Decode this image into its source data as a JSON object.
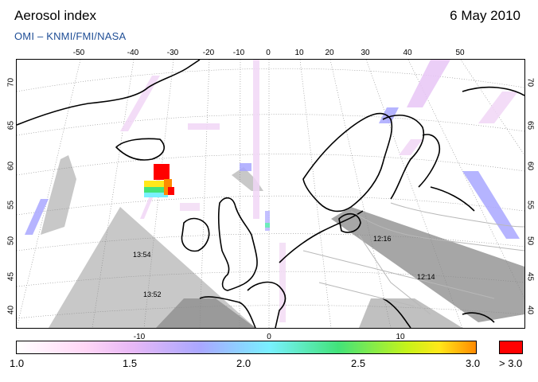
{
  "header": {
    "title": "Aerosol index",
    "date": "6 May 2010",
    "credit": "OMI  –  KNMI/FMI/NASA"
  },
  "map": {
    "lon_top_labels": [
      "-50",
      "-40",
      "-30",
      "-20",
      "-10",
      "0",
      "10",
      "20",
      "30",
      "40",
      "50"
    ],
    "lon_bottom_labels": [
      "-10",
      "0",
      "10"
    ],
    "lat_left_labels": [
      "70",
      "65",
      "60",
      "55",
      "50",
      "45",
      "40"
    ],
    "lat_right_labels": [
      "70",
      "65",
      "60",
      "55",
      "50",
      "45",
      "40"
    ],
    "orbit_time_labels": [
      "13:54",
      "13:52",
      "12:16",
      "12:14"
    ],
    "colors": {
      "land_outline": "#000000",
      "country_border": "#b8b8b8",
      "no_data_gray": "#c8c8c8",
      "dark_gray": "#9a9a9a",
      "graticule": "#888888"
    }
  },
  "colorbar": {
    "tick_labels": [
      "1.0",
      "1.5",
      "2.0",
      "2.5",
      "3.0"
    ],
    "overflow_label": "> 3.0",
    "overflow_color": "#ff0000",
    "gradient_colors": [
      "#ffffff",
      "#ffd6f6",
      "#e8b8f6",
      "#a9a7ff",
      "#79f0ff",
      "#42e37a",
      "#c6f31a",
      "#ffe81a",
      "#ff8a00"
    ]
  }
}
